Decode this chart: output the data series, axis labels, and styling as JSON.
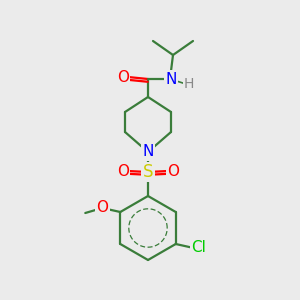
{
  "background_color": "#ebebeb",
  "bond_color": "#3a7d3a",
  "atom_colors": {
    "O": "#ff0000",
    "N": "#0000ff",
    "S": "#cccc00",
    "Cl": "#00cc00",
    "H": "#888888",
    "C": "#3a7d3a"
  },
  "bond_lw": 1.6,
  "font_size": 11
}
